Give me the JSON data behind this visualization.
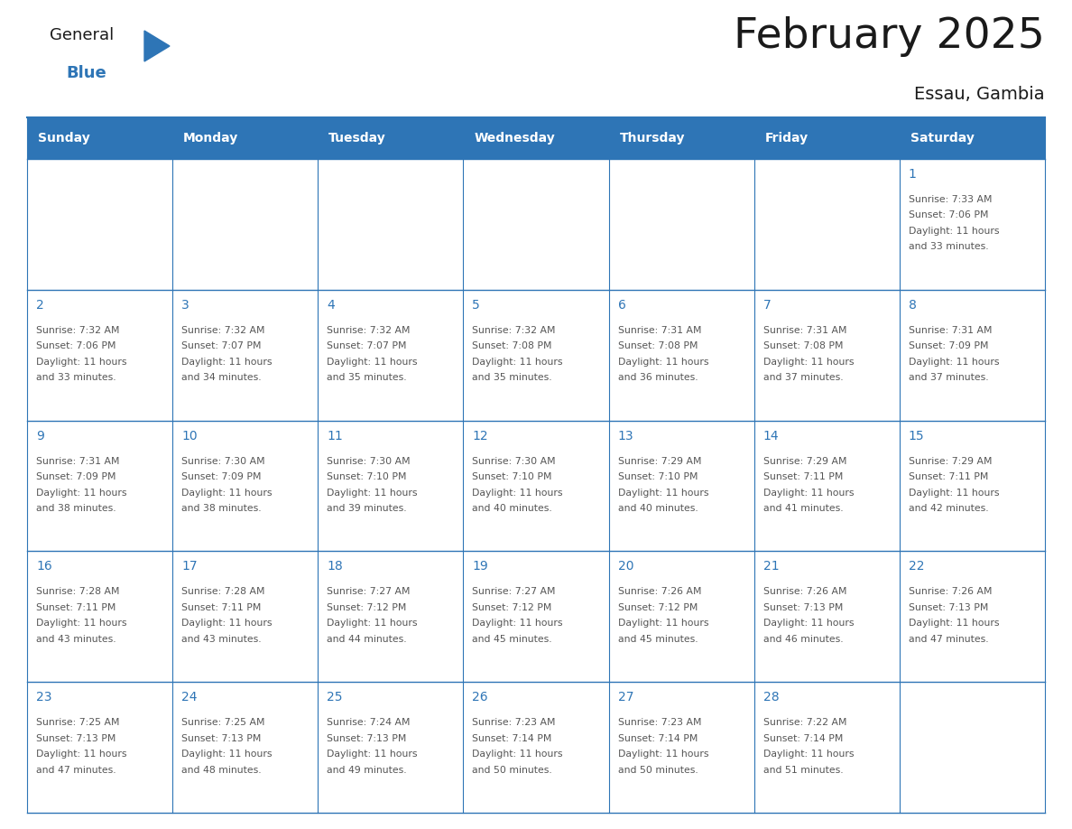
{
  "title": "February 2025",
  "subtitle": "Essau, Gambia",
  "days_of_week": [
    "Sunday",
    "Monday",
    "Tuesday",
    "Wednesday",
    "Thursday",
    "Friday",
    "Saturday"
  ],
  "header_bg": "#2E75B6",
  "header_text": "#FFFFFF",
  "cell_bg": "#FFFFFF",
  "border_color": "#2E75B6",
  "text_color": "#555555",
  "day_number_color": "#2E75B6",
  "title_color": "#1a1a1a",
  "calendar": [
    [
      null,
      null,
      null,
      null,
      null,
      null,
      1
    ],
    [
      2,
      3,
      4,
      5,
      6,
      7,
      8
    ],
    [
      9,
      10,
      11,
      12,
      13,
      14,
      15
    ],
    [
      16,
      17,
      18,
      19,
      20,
      21,
      22
    ],
    [
      23,
      24,
      25,
      26,
      27,
      28,
      null
    ]
  ],
  "sunrise": {
    "1": "7:33 AM",
    "2": "7:32 AM",
    "3": "7:32 AM",
    "4": "7:32 AM",
    "5": "7:32 AM",
    "6": "7:31 AM",
    "7": "7:31 AM",
    "8": "7:31 AM",
    "9": "7:31 AM",
    "10": "7:30 AM",
    "11": "7:30 AM",
    "12": "7:30 AM",
    "13": "7:29 AM",
    "14": "7:29 AM",
    "15": "7:29 AM",
    "16": "7:28 AM",
    "17": "7:28 AM",
    "18": "7:27 AM",
    "19": "7:27 AM",
    "20": "7:26 AM",
    "21": "7:26 AM",
    "22": "7:26 AM",
    "23": "7:25 AM",
    "24": "7:25 AM",
    "25": "7:24 AM",
    "26": "7:23 AM",
    "27": "7:23 AM",
    "28": "7:22 AM"
  },
  "sunset": {
    "1": "7:06 PM",
    "2": "7:06 PM",
    "3": "7:07 PM",
    "4": "7:07 PM",
    "5": "7:08 PM",
    "6": "7:08 PM",
    "7": "7:08 PM",
    "8": "7:09 PM",
    "9": "7:09 PM",
    "10": "7:09 PM",
    "11": "7:10 PM",
    "12": "7:10 PM",
    "13": "7:10 PM",
    "14": "7:11 PM",
    "15": "7:11 PM",
    "16": "7:11 PM",
    "17": "7:11 PM",
    "18": "7:12 PM",
    "19": "7:12 PM",
    "20": "7:12 PM",
    "21": "7:13 PM",
    "22": "7:13 PM",
    "23": "7:13 PM",
    "24": "7:13 PM",
    "25": "7:13 PM",
    "26": "7:14 PM",
    "27": "7:14 PM",
    "28": "7:14 PM"
  },
  "daylight": {
    "1": "11 hours and 33 minutes.",
    "2": "11 hours and 33 minutes.",
    "3": "11 hours and 34 minutes.",
    "4": "11 hours and 35 minutes.",
    "5": "11 hours and 35 minutes.",
    "6": "11 hours and 36 minutes.",
    "7": "11 hours and 37 minutes.",
    "8": "11 hours and 37 minutes.",
    "9": "11 hours and 38 minutes.",
    "10": "11 hours and 38 minutes.",
    "11": "11 hours and 39 minutes.",
    "12": "11 hours and 40 minutes.",
    "13": "11 hours and 40 minutes.",
    "14": "11 hours and 41 minutes.",
    "15": "11 hours and 42 minutes.",
    "16": "11 hours and 43 minutes.",
    "17": "11 hours and 43 minutes.",
    "18": "11 hours and 44 minutes.",
    "19": "11 hours and 45 minutes.",
    "20": "11 hours and 45 minutes.",
    "21": "11 hours and 46 minutes.",
    "22": "11 hours and 47 minutes.",
    "23": "11 hours and 47 minutes.",
    "24": "11 hours and 48 minutes.",
    "25": "11 hours and 49 minutes.",
    "26": "11 hours and 50 minutes.",
    "27": "11 hours and 50 minutes.",
    "28": "11 hours and 51 minutes."
  }
}
